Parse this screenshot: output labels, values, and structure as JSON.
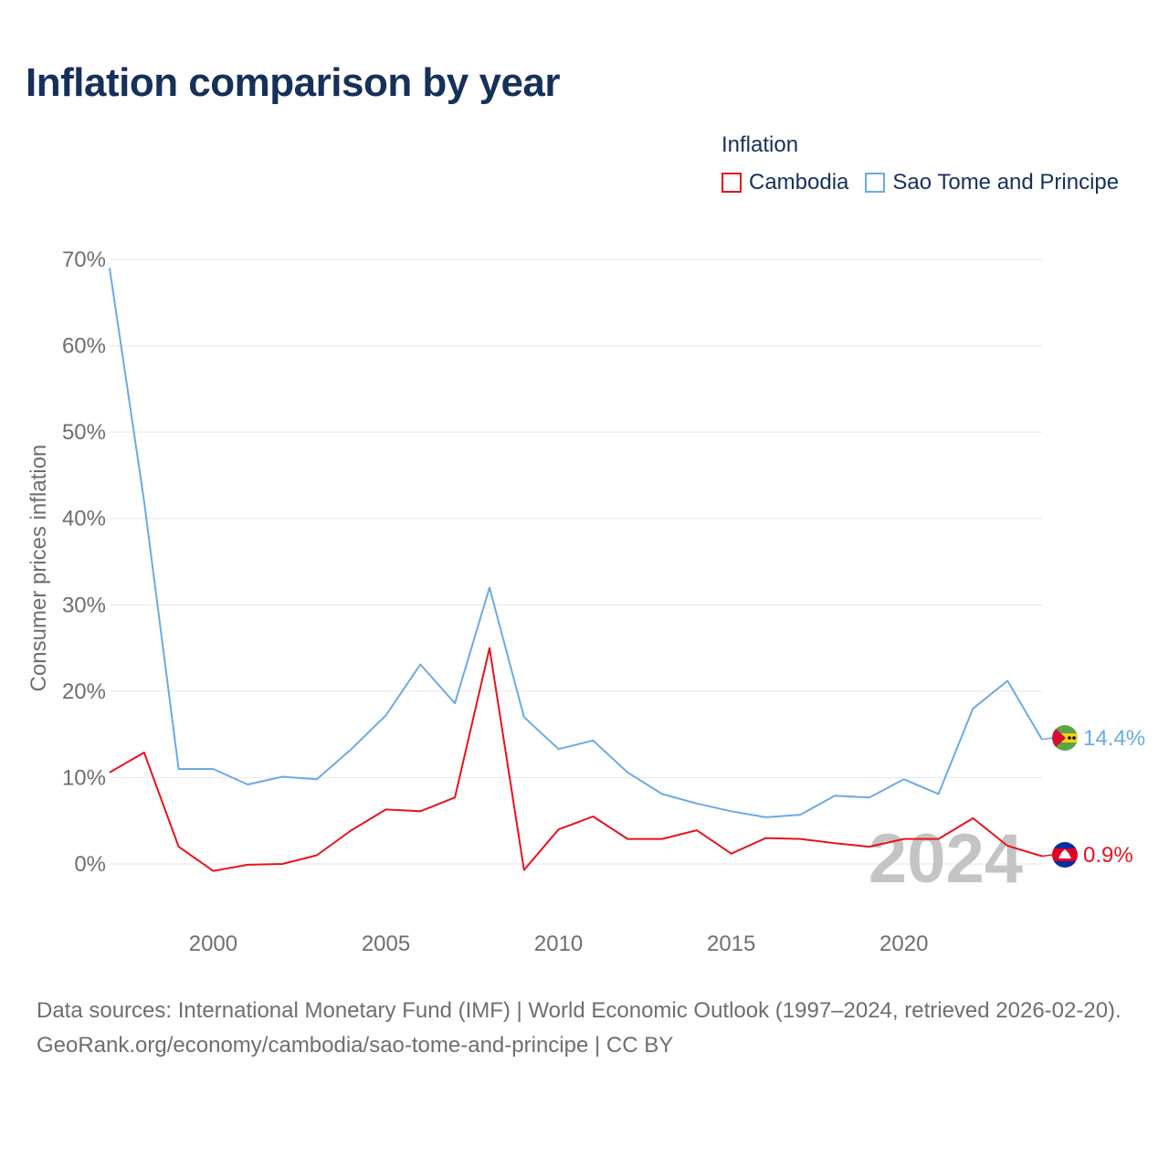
{
  "header": {
    "title": "Inflation comparison by year"
  },
  "legend": {
    "title": "Inflation",
    "items": [
      {
        "label": "Cambodia",
        "color": "#e8121b"
      },
      {
        "label": "Sao Tome and Principe",
        "color": "#6aaae3"
      }
    ]
  },
  "chart_data": {
    "type": "line",
    "title": "Inflation comparison by year",
    "xlabel": "",
    "ylabel": "Consumer prices inflation",
    "xlim": [
      1997,
      2024
    ],
    "ylim": [
      0,
      70
    ],
    "y_ticks": [
      "0%",
      "10%",
      "20%",
      "30%",
      "40%",
      "50%",
      "60%",
      "70%"
    ],
    "x_ticks": [
      "2000",
      "2005",
      "2010",
      "2015",
      "2020"
    ],
    "year_watermark": "2024",
    "x": [
      1997,
      1998,
      1999,
      2000,
      2001,
      2002,
      2003,
      2004,
      2005,
      2006,
      2007,
      2008,
      2009,
      2010,
      2011,
      2012,
      2013,
      2014,
      2015,
      2016,
      2017,
      2018,
      2019,
      2020,
      2021,
      2022,
      2023,
      2024
    ],
    "series": [
      {
        "name": "Cambodia",
        "color": "#e8121b",
        "end_label": "0.9%",
        "values": [
          10.6,
          12.9,
          2.0,
          -0.8,
          -0.1,
          0.0,
          1.0,
          3.9,
          6.3,
          6.1,
          7.7,
          25.0,
          -0.7,
          4.0,
          5.5,
          2.9,
          2.9,
          3.9,
          1.2,
          3.0,
          2.9,
          2.4,
          2.0,
          2.9,
          2.9,
          5.3,
          2.1,
          0.9
        ]
      },
      {
        "name": "Sao Tome and Principe",
        "color": "#6aaae3",
        "end_label": "14.4%",
        "values": [
          69.0,
          42.0,
          11.0,
          11.0,
          9.2,
          10.1,
          9.8,
          13.3,
          17.2,
          23.1,
          18.6,
          32.0,
          17.0,
          13.3,
          14.3,
          10.6,
          8.1,
          7.0,
          6.1,
          5.4,
          5.7,
          7.9,
          7.7,
          9.8,
          8.1,
          18.0,
          21.2,
          14.4
        ]
      }
    ]
  },
  "footer": {
    "sources": "Data sources: International Monetary Fund (IMF) | World Economic Outlook (1997–2024, retrieved 2026-02-20).",
    "credit": "GeoRank.org/economy/cambodia/sao-tome-and-principe | CC BY"
  }
}
